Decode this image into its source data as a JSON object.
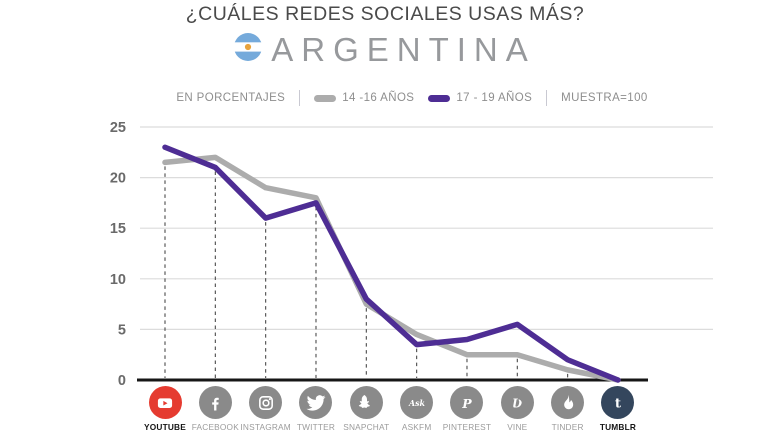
{
  "header": {
    "title": "¿CUÁLES REDES SOCIALES USAS MÁS?",
    "country": "ARGENTINA",
    "flag_colors": {
      "band": "#75AADB",
      "middle": "#FFFFFF",
      "sun": "#E8A33D"
    }
  },
  "legend": {
    "left_label": "EN PORCENTAJES",
    "series": [
      {
        "label": "14 -16 AÑOS",
        "color": "#ACACAC"
      },
      {
        "label": "17 - 19 AÑOS",
        "color": "#4E2D94"
      }
    ],
    "right_label": "MUESTRA=100"
  },
  "chart_data": {
    "type": "line",
    "title": "¿CUÁLES REDES SOCIALES USAS MÁS? — ARGENTINA",
    "unit": "percent",
    "sample": "MUESTRA=100",
    "categories": [
      "YOUTUBE",
      "FACEBOOK",
      "INSTAGRAM",
      "TWITTER",
      "SNAPCHAT",
      "ASKFM",
      "PINTEREST",
      "VINE",
      "TINDER",
      "TUMBLR"
    ],
    "series": [
      {
        "name": "14 -16 AÑOS",
        "color": "#ACACAC",
        "values": [
          21.5,
          22,
          19,
          18,
          7.5,
          4.5,
          2.5,
          2.5,
          1,
          0
        ]
      },
      {
        "name": "17 - 19 AÑOS",
        "color": "#4E2D94",
        "values": [
          23,
          21,
          16,
          17.5,
          8,
          3.5,
          4,
          5.5,
          2,
          0
        ]
      }
    ],
    "ylim": [
      0,
      25
    ],
    "yticks": [
      0,
      5,
      10,
      15,
      20,
      25
    ],
    "grid": true,
    "legend_position": "top"
  },
  "xaxis": {
    "items": [
      {
        "label": "YOUTUBE",
        "icon": "youtube-icon",
        "circle_color": "#E53B30",
        "label_emphasis": true
      },
      {
        "label": "FACEBOOK",
        "icon": "facebook-icon",
        "circle_color": "#8A8A8A",
        "label_emphasis": false
      },
      {
        "label": "INSTAGRAM",
        "icon": "instagram-icon",
        "circle_color": "#8A8A8A",
        "label_emphasis": false
      },
      {
        "label": "TWITTER",
        "icon": "twitter-icon",
        "circle_color": "#8A8A8A",
        "label_emphasis": false
      },
      {
        "label": "SNAPCHAT",
        "icon": "snapchat-icon",
        "circle_color": "#8A8A8A",
        "label_emphasis": false
      },
      {
        "label": "ASKFM",
        "icon": "askfm-icon",
        "circle_color": "#8A8A8A",
        "label_emphasis": false
      },
      {
        "label": "PINTEREST",
        "icon": "pinterest-icon",
        "circle_color": "#8A8A8A",
        "label_emphasis": false
      },
      {
        "label": "VINE",
        "icon": "vine-icon",
        "circle_color": "#8A8A8A",
        "label_emphasis": false
      },
      {
        "label": "TINDER",
        "icon": "tinder-icon",
        "circle_color": "#8A8A8A",
        "label_emphasis": false
      },
      {
        "label": "TUMBLR",
        "icon": "tumblr-icon",
        "circle_color": "#34465D",
        "label_emphasis": true
      }
    ]
  }
}
